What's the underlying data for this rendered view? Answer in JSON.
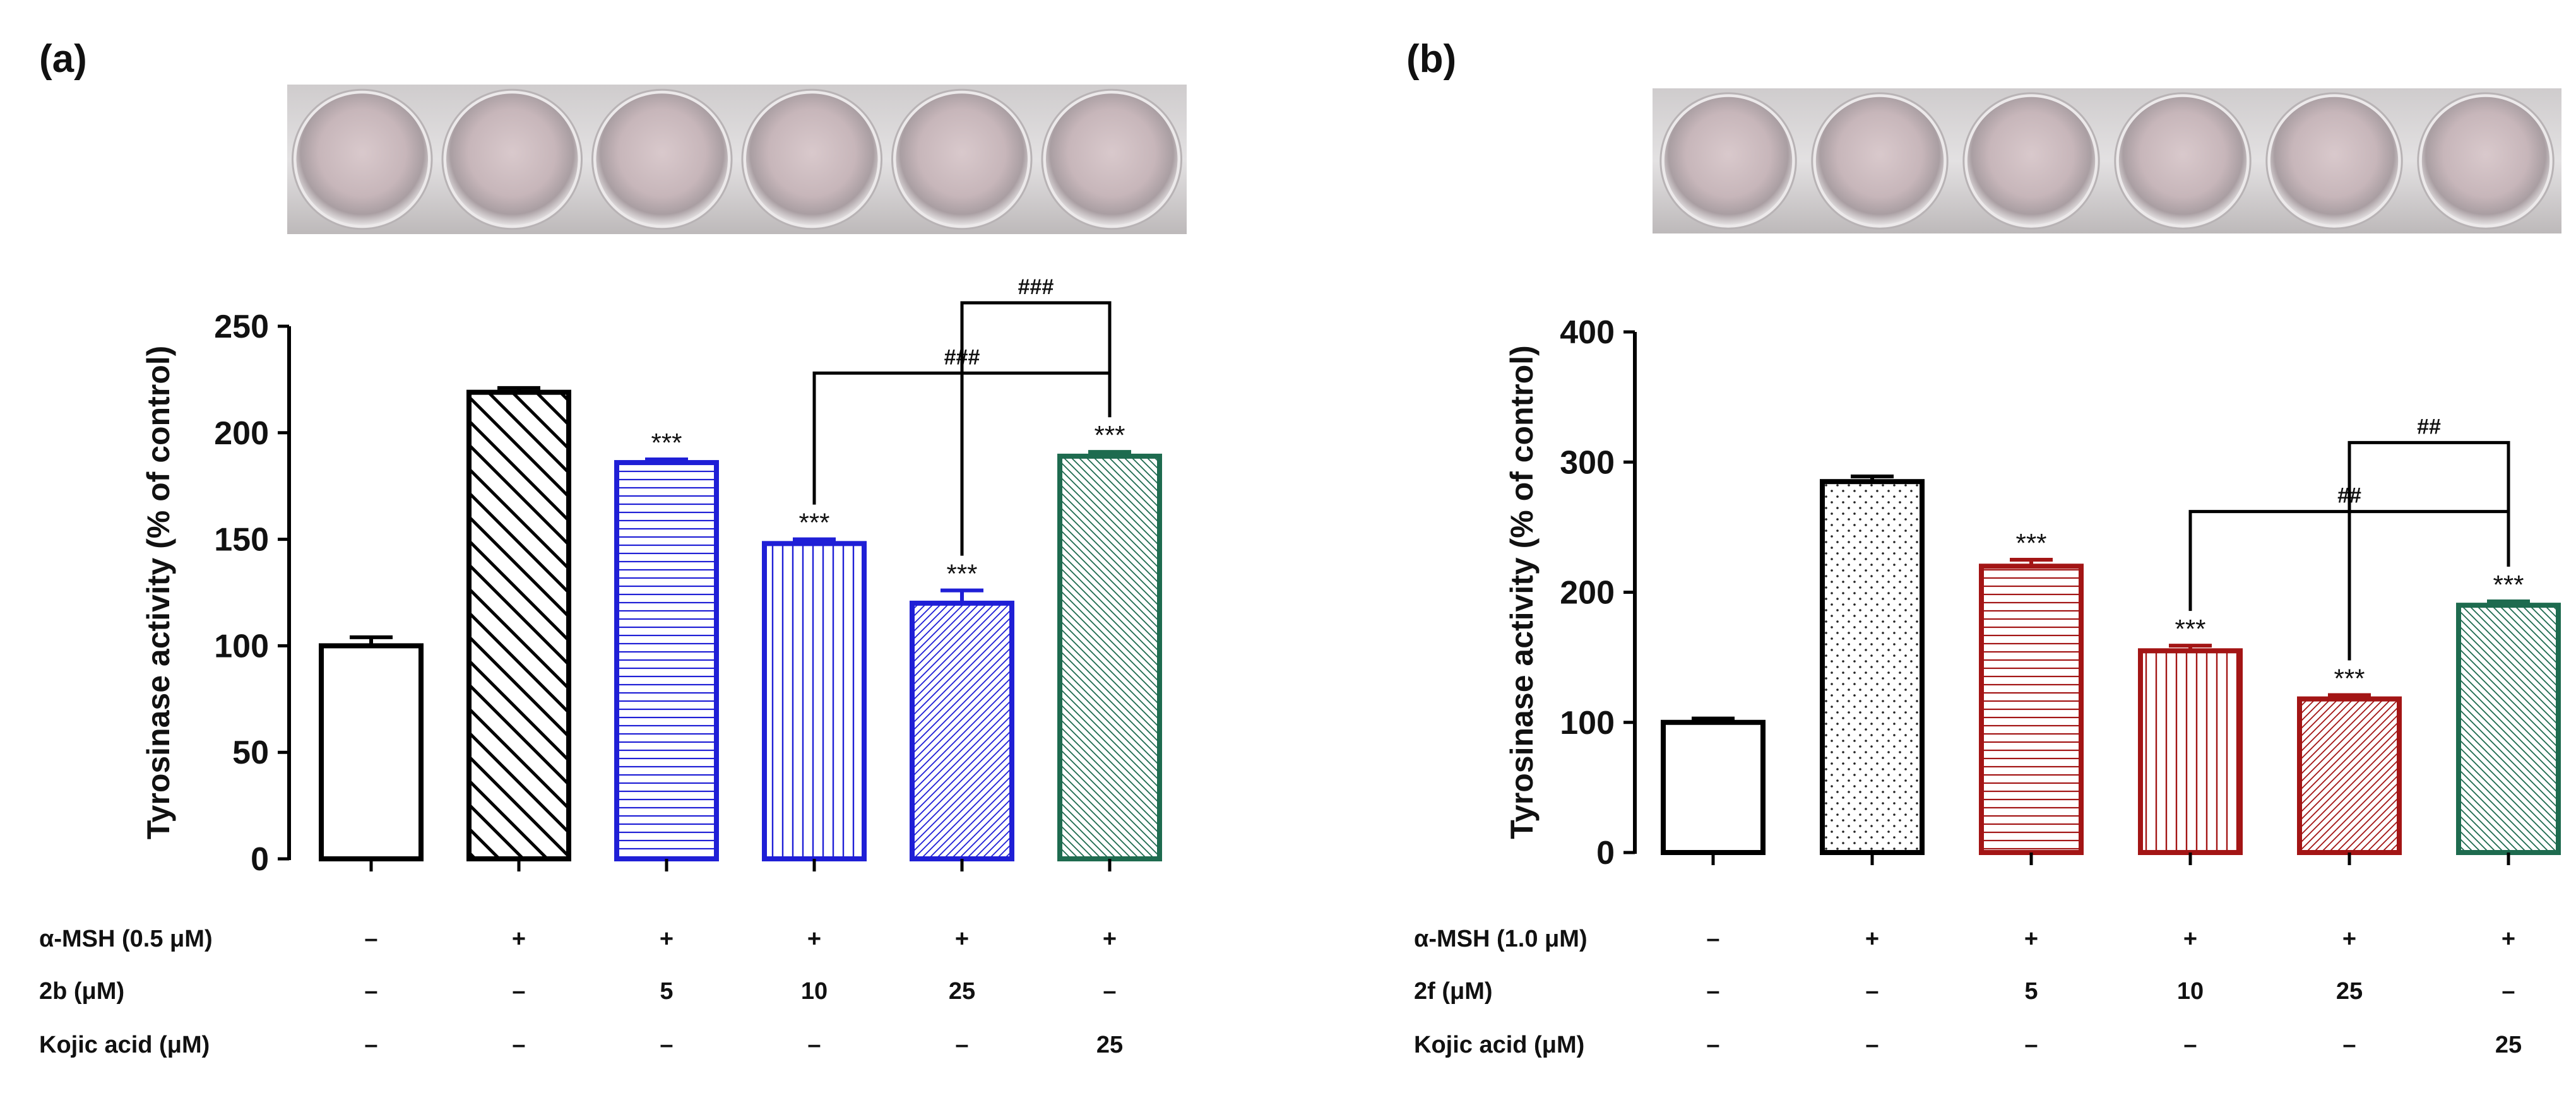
{
  "panels": [
    {
      "label": "(a)",
      "photo_name": "well-plate-photo-a",
      "chart_data": {
        "type": "bar",
        "title": "",
        "xlabel": "",
        "ylabel": "Tyrosinase activity (% of control)",
        "ylim": [
          0,
          250
        ],
        "yticks": [
          0,
          50,
          100,
          150,
          200,
          250
        ],
        "bars": [
          {
            "value": 100,
            "error": 4,
            "color": "#000000",
            "pattern": "none",
            "annotation": ""
          },
          {
            "value": 219,
            "error": 2,
            "color": "#000000",
            "pattern": "diag-back",
            "annotation": ""
          },
          {
            "value": 186,
            "error": 1.5,
            "color": "#1f1fd6",
            "pattern": "horizontal",
            "annotation": "***"
          },
          {
            "value": 148,
            "error": 2,
            "color": "#1f1fd6",
            "pattern": "vertical",
            "annotation": "***"
          },
          {
            "value": 120,
            "error": 6,
            "color": "#1f1fd6",
            "pattern": "diag-fine",
            "annotation": "***"
          },
          {
            "value": 189,
            "error": 2,
            "color": "#1e6b4f",
            "pattern": "diag-back-fine",
            "annotation": "***"
          }
        ],
        "brackets": [
          {
            "from": 3,
            "to": 5,
            "y": 228,
            "label": "###"
          },
          {
            "from": 4,
            "to": 5,
            "y": 261,
            "label": "###"
          }
        ],
        "conditions": [
          {
            "label": "α-MSH (0.5 μM)",
            "values": [
              "–",
              "+",
              "+",
              "+",
              "+",
              "+"
            ]
          },
          {
            "label": "2b (μM)",
            "values": [
              "–",
              "–",
              "5",
              "10",
              "25",
              "–"
            ]
          },
          {
            "label": "Kojic acid (μM)",
            "values": [
              "–",
              "–",
              "–",
              "–",
              "–",
              "25"
            ]
          }
        ]
      }
    },
    {
      "label": "(b)",
      "photo_name": "well-plate-photo-b",
      "chart_data": {
        "type": "bar",
        "title": "",
        "xlabel": "",
        "ylabel": "Tyrosinase activity (% of control)",
        "ylim": [
          0,
          400
        ],
        "yticks": [
          0,
          100,
          200,
          300,
          400
        ],
        "bars": [
          {
            "value": 100,
            "error": 3,
            "color": "#000000",
            "pattern": "none",
            "annotation": ""
          },
          {
            "value": 285,
            "error": 4,
            "color": "#000000",
            "pattern": "dots",
            "annotation": ""
          },
          {
            "value": 220,
            "error": 5,
            "color": "#a31515",
            "pattern": "horizontal",
            "annotation": "***"
          },
          {
            "value": 155,
            "error": 4,
            "color": "#a31515",
            "pattern": "vertical",
            "annotation": "***"
          },
          {
            "value": 118,
            "error": 3,
            "color": "#a31515",
            "pattern": "diag-fine",
            "annotation": "***"
          },
          {
            "value": 190,
            "error": 3,
            "color": "#1e6b4f",
            "pattern": "diag-back-fine",
            "annotation": "***"
          }
        ],
        "brackets": [
          {
            "from": 3,
            "to": 5,
            "y": 262,
            "label": "##"
          },
          {
            "from": 4,
            "to": 5,
            "y": 315,
            "label": "##"
          }
        ],
        "conditions": [
          {
            "label": "α-MSH (1.0 μM)",
            "values": [
              "–",
              "+",
              "+",
              "+",
              "+",
              "+"
            ]
          },
          {
            "label": "2f (μM)",
            "values": [
              "–",
              "–",
              "5",
              "10",
              "25",
              "–"
            ]
          },
          {
            "label": "Kojic acid (μM)",
            "values": [
              "–",
              "–",
              "–",
              "–",
              "–",
              "25"
            ]
          }
        ]
      }
    }
  ]
}
